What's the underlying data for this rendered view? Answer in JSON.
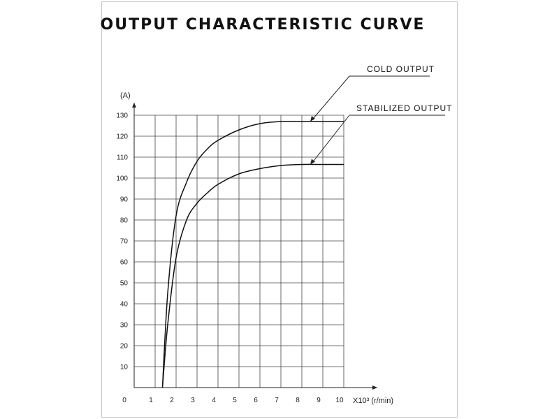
{
  "chart_data": {
    "type": "line",
    "title": "OUTPUT CHARACTERISTIC CURVE",
    "ylabel": "(A)",
    "xlabel": "X10³ (r/min)",
    "xlim": [
      0,
      10
    ],
    "ylim": [
      0,
      130
    ],
    "x_ticks": [
      "0",
      "1",
      "2",
      "3",
      "4",
      "5",
      "6",
      "7",
      "8",
      "9",
      "10"
    ],
    "y_ticks": [
      "10",
      "20",
      "30",
      "40",
      "50",
      "60",
      "70",
      "80",
      "90",
      "100",
      "110",
      "120",
      "130"
    ],
    "grid": true,
    "series": [
      {
        "name": "COLD OUTPUT",
        "x": [
          1.35,
          1.6,
          2.0,
          2.5,
          3.0,
          3.5,
          4.0,
          5.0,
          6.0,
          7.0,
          8.0,
          9.0,
          10.0
        ],
        "y": [
          0,
          45,
          82,
          98,
          108,
          114,
          118,
          123,
          126,
          127,
          127,
          127,
          127
        ]
      },
      {
        "name": "STABILIZED OUTPUT",
        "x": [
          1.35,
          1.6,
          2.0,
          2.5,
          3.0,
          3.5,
          4.0,
          5.0,
          6.0,
          7.0,
          8.0,
          9.0,
          10.0
        ],
        "y": [
          0,
          30,
          62,
          80,
          88,
          93,
          97,
          102,
          104.5,
          106,
          106.5,
          106.5,
          106.5
        ]
      }
    ],
    "annotations": [
      {
        "text": "COLD OUTPUT",
        "series": 0
      },
      {
        "text": "STABILIZED OUTPUT",
        "series": 1
      }
    ]
  }
}
